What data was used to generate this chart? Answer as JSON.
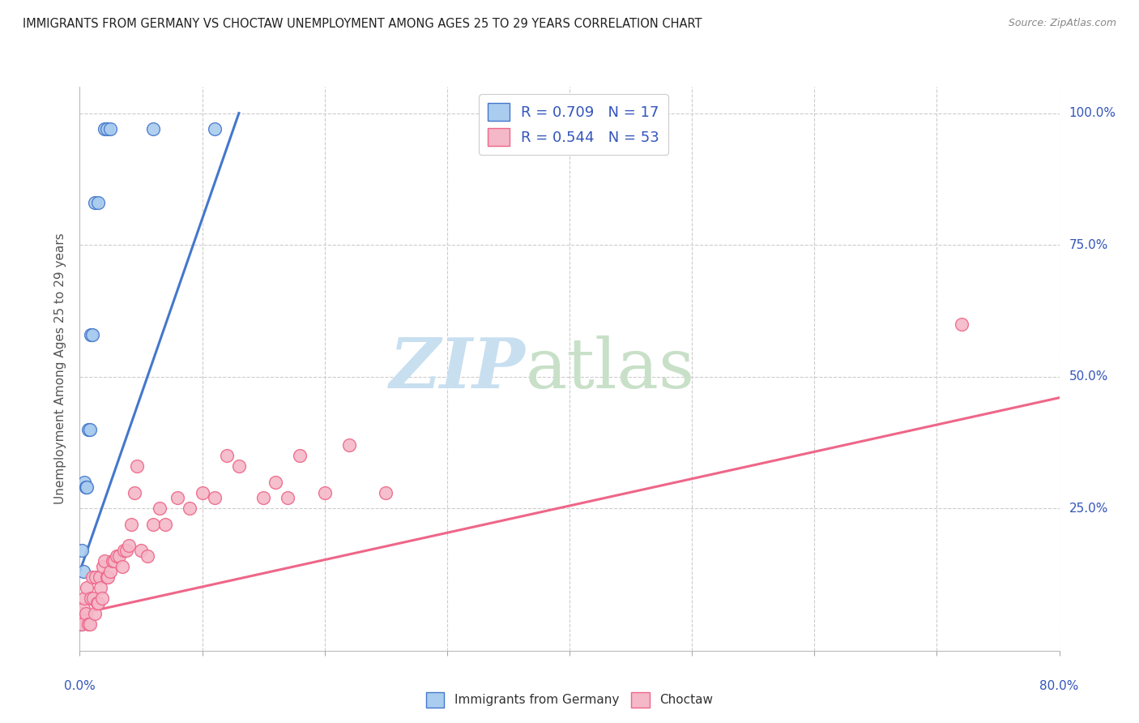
{
  "title": "IMMIGRANTS FROM GERMANY VS CHOCTAW UNEMPLOYMENT AMONG AGES 25 TO 29 YEARS CORRELATION CHART",
  "source": "Source: ZipAtlas.com",
  "ylabel": "Unemployment Among Ages 25 to 29 years",
  "yticks": [
    0.0,
    0.25,
    0.5,
    0.75,
    1.0
  ],
  "ytick_labels": [
    "",
    "25.0%",
    "50.0%",
    "75.0%",
    "100.0%"
  ],
  "legend_r1": "R = 0.709",
  "legend_n1": "N = 17",
  "legend_r2": "R = 0.544",
  "legend_n2": "N = 53",
  "color_blue": "#aaccee",
  "color_pink": "#f4b8c8",
  "color_blue_line": "#4477cc",
  "color_pink_line": "#ee6688",
  "color_title": "#222222",
  "color_legend_text": "#3355bb",
  "color_axis": "#3355bb",
  "xlim": [
    0.0,
    0.8
  ],
  "ylim": [
    -0.02,
    1.05
  ],
  "blue_scatter_x": [
    0.001,
    0.002,
    0.003,
    0.004,
    0.005,
    0.006,
    0.007,
    0.008,
    0.009,
    0.01,
    0.012,
    0.015,
    0.02,
    0.022,
    0.025,
    0.06,
    0.11
  ],
  "blue_scatter_y": [
    0.03,
    0.17,
    0.13,
    0.3,
    0.29,
    0.29,
    0.4,
    0.4,
    0.58,
    0.58,
    0.83,
    0.83,
    0.97,
    0.97,
    0.97,
    0.97,
    0.97
  ],
  "pink_scatter_x": [
    0.001,
    0.002,
    0.003,
    0.004,
    0.005,
    0.006,
    0.007,
    0.008,
    0.009,
    0.01,
    0.011,
    0.012,
    0.013,
    0.014,
    0.015,
    0.016,
    0.017,
    0.018,
    0.019,
    0.02,
    0.022,
    0.023,
    0.025,
    0.027,
    0.028,
    0.03,
    0.032,
    0.035,
    0.036,
    0.038,
    0.04,
    0.042,
    0.045,
    0.047,
    0.05,
    0.055,
    0.06,
    0.065,
    0.07,
    0.08,
    0.09,
    0.1,
    0.11,
    0.12,
    0.13,
    0.15,
    0.16,
    0.17,
    0.18,
    0.2,
    0.22,
    0.25,
    0.72
  ],
  "pink_scatter_y": [
    0.05,
    0.03,
    0.06,
    0.08,
    0.05,
    0.1,
    0.03,
    0.03,
    0.08,
    0.12,
    0.08,
    0.05,
    0.12,
    0.07,
    0.07,
    0.12,
    0.1,
    0.08,
    0.14,
    0.15,
    0.12,
    0.12,
    0.13,
    0.15,
    0.15,
    0.16,
    0.16,
    0.14,
    0.17,
    0.17,
    0.18,
    0.22,
    0.28,
    0.33,
    0.17,
    0.16,
    0.22,
    0.25,
    0.22,
    0.27,
    0.25,
    0.28,
    0.27,
    0.35,
    0.33,
    0.27,
    0.3,
    0.27,
    0.35,
    0.28,
    0.37,
    0.28,
    0.6
  ],
  "blue_line_x": [
    0.0,
    0.13
  ],
  "blue_line_y": [
    0.13,
    1.0
  ],
  "pink_line_x": [
    0.0,
    0.8
  ],
  "pink_line_y": [
    0.05,
    0.46
  ]
}
